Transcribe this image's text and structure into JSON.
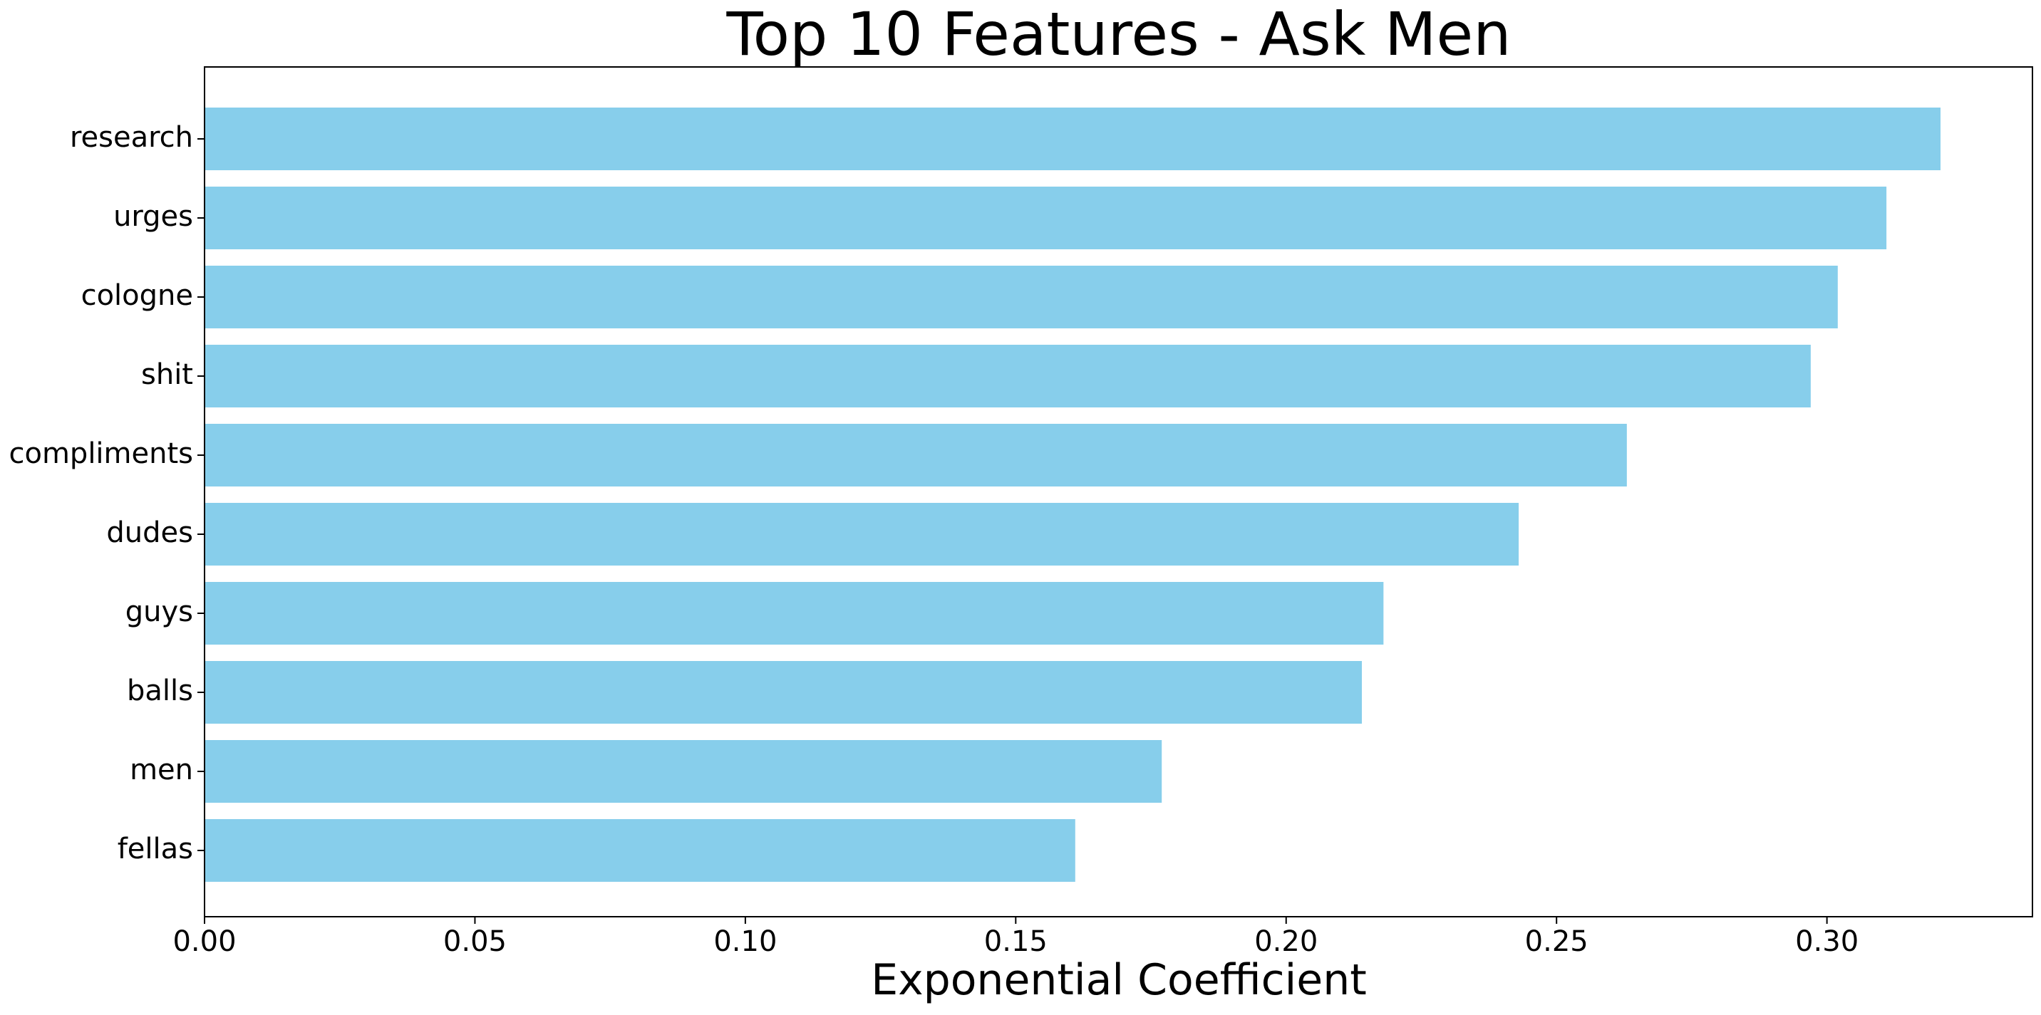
{
  "chart_data": {
    "type": "bar",
    "orientation": "horizontal",
    "title": "Top 10 Features - Ask Men",
    "xlabel": "Exponential Coefficient",
    "ylabel": "",
    "categories": [
      "research",
      "urges",
      "cologne",
      "shit",
      "compliments",
      "dudes",
      "guys",
      "balls",
      "men",
      "fellas"
    ],
    "values": [
      0.321,
      0.311,
      0.302,
      0.297,
      0.263,
      0.243,
      0.218,
      0.214,
      0.177,
      0.161
    ],
    "xlim": [
      0.0,
      0.338
    ],
    "xticks": [
      "0.00",
      "0.05",
      "0.10",
      "0.15",
      "0.20",
      "0.25",
      "0.30"
    ],
    "grid": false,
    "legend": "none",
    "bar_color": "#87CEEB"
  }
}
